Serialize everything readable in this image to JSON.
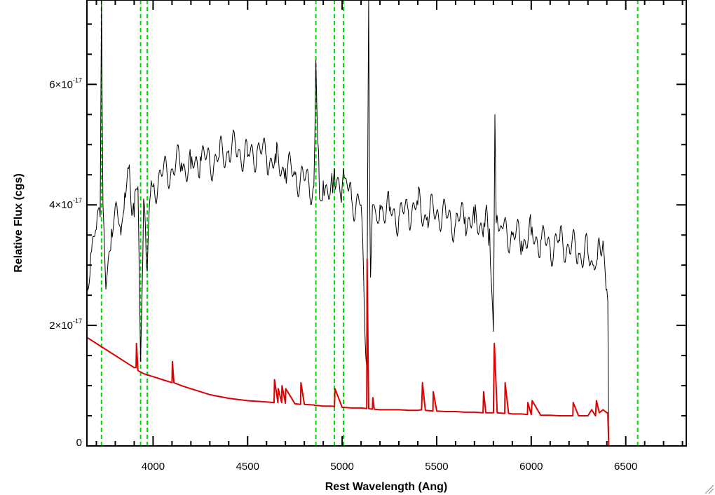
{
  "chart_data": {
    "type": "line",
    "title": "",
    "xlabel": "Rest Wavelength (Ang)",
    "ylabel": "Relative Flux (cgs)",
    "xlim": [
      3650,
      6820
    ],
    "ylim": [
      0,
      7.4e-17
    ],
    "x_ticks": [
      {
        "value": 4000,
        "label": "4000"
      },
      {
        "value": 4500,
        "label": "4500"
      },
      {
        "value": 5000,
        "label": "5000"
      },
      {
        "value": 5500,
        "label": "5500"
      },
      {
        "value": 6000,
        "label": "6000"
      },
      {
        "value": 6500,
        "label": "6500"
      }
    ],
    "y_ticks": [
      {
        "value": 0,
        "mant": "0",
        "exp": ""
      },
      {
        "value": 2e-17,
        "mant": "2×10",
        "exp": "-17"
      },
      {
        "value": 4e-17,
        "mant": "4×10",
        "exp": "-17"
      },
      {
        "value": 6e-17,
        "mant": "6×10",
        "exp": "-17"
      }
    ],
    "x_minor_step": 100,
    "y_minor_step": 5e-18,
    "grid": false,
    "reference_lines": {
      "color": "#00dd00",
      "style": "dashed",
      "x": [
        3727,
        3934,
        3969,
        4861,
        4959,
        5007,
        6563
      ]
    },
    "series": [
      {
        "color": "#000000",
        "x": [
          3650,
          3670,
          3700,
          3720,
          3727,
          3735,
          3750,
          3780,
          3800,
          3830,
          3850,
          3870,
          3900,
          3920,
          3934,
          3950,
          3969,
          3990,
          4000,
          4050,
          4100,
          4150,
          4200,
          4250,
          4300,
          4350,
          4400,
          4450,
          4500,
          4550,
          4600,
          4650,
          4700,
          4750,
          4800,
          4850,
          4861,
          4880,
          4900,
          4950,
          4959,
          5000,
          5007,
          5050,
          5100,
          5130,
          5140,
          5145,
          5150,
          5160,
          5200,
          5250,
          5300,
          5350,
          5400,
          5450,
          5500,
          5550,
          5600,
          5650,
          5700,
          5750,
          5780,
          5800,
          5808,
          5815,
          5850,
          5900,
          5950,
          6000,
          6050,
          6100,
          6150,
          6200,
          6250,
          6300,
          6330,
          6350,
          6380,
          6400,
          6405,
          6410,
          6820
        ],
        "y": [
          2.8e-17,
          3.2e-17,
          3.6e-17,
          3.8e-17,
          7.4e-17,
          4e-17,
          2.6e-17,
          3.6e-17,
          4e-17,
          3.5e-17,
          4.2e-17,
          4.6e-17,
          3.8e-17,
          4.3e-17,
          1.4e-17,
          4.1e-17,
          2.9e-17,
          4.4e-17,
          4.3e-17,
          4.5e-17,
          4.6e-17,
          4.7e-17,
          4.6e-17,
          4.8e-17,
          4.7e-17,
          4.8e-17,
          4.9e-17,
          4.9e-17,
          4.8e-17,
          4.9e-17,
          4.8e-17,
          4.7e-17,
          4.6e-17,
          4.5e-17,
          4.4e-17,
          4.3e-17,
          6.4e-17,
          4.1e-17,
          4.4e-17,
          4.2e-17,
          4.6e-17,
          4.3e-17,
          4.6e-17,
          4.1e-17,
          4e-17,
          1.3e-17,
          7.4e-17,
          4.3e-17,
          2.8e-17,
          4e-17,
          4e-17,
          3.9e-17,
          3.8e-17,
          3.9e-17,
          4e-17,
          3.8e-17,
          3.9e-17,
          3.8e-17,
          3.7e-17,
          3.8e-17,
          3.7e-17,
          3.7e-17,
          3.6e-17,
          1.9e-17,
          5.5e-17,
          3.7e-17,
          3.6e-17,
          3.5e-17,
          3.4e-17,
          3.5e-17,
          3.4e-17,
          3.3e-17,
          3.4e-17,
          3.3e-17,
          3.2e-17,
          3.2e-17,
          3e-17,
          3.1e-17,
          3.4e-17,
          2.6e-17,
          2.4e-17,
          0,
          0
        ]
      },
      {
        "color": "#dd0000",
        "x": [
          3650,
          3700,
          3750,
          3800,
          3850,
          3900,
          3910,
          3912,
          3920,
          3950,
          4000,
          4050,
          4100,
          4102,
          4110,
          4150,
          4200,
          4250,
          4300,
          4350,
          4400,
          4450,
          4500,
          4550,
          4600,
          4640,
          4642,
          4660,
          4662,
          4680,
          4682,
          4700,
          4702,
          4750,
          4780,
          4782,
          4800,
          4850,
          4861,
          4870,
          4900,
          4950,
          4959,
          4962,
          5000,
          5050,
          5100,
          5130,
          5132,
          5140,
          5160,
          5162,
          5170,
          5200,
          5250,
          5300,
          5350,
          5400,
          5420,
          5425,
          5440,
          5480,
          5482,
          5500,
          5550,
          5600,
          5650,
          5700,
          5745,
          5748,
          5760,
          5800,
          5805,
          5820,
          5860,
          5862,
          5880,
          5900,
          5950,
          5980,
          5982,
          6000,
          6005,
          6050,
          6100,
          6150,
          6200,
          6220,
          6222,
          6250,
          6300,
          6320,
          6340,
          6345,
          6360,
          6380,
          6400,
          6405,
          6410,
          6820
        ],
        "y": [
          1.8e-17,
          1.7e-17,
          1.6e-17,
          1.5e-17,
          1.4e-17,
          1.3e-17,
          1.3e-17,
          1.7e-17,
          1.25e-17,
          1.2e-17,
          1.15e-17,
          1.1e-17,
          1.05e-17,
          1.4e-17,
          1.05e-17,
          1e-17,
          9.5e-18,
          9e-18,
          8.5e-18,
          8.2e-18,
          7.9e-18,
          7.7e-18,
          7.5e-18,
          7.4e-18,
          7.3e-18,
          7.2e-18,
          1.1e-17,
          7.2e-18,
          9.5e-18,
          7.2e-18,
          1e-17,
          7.1e-18,
          9.5e-18,
          7e-18,
          6.9e-18,
          1.05e-17,
          6.9e-18,
          6.8e-18,
          6.7e-18,
          6.7e-18,
          6.6e-18,
          6.6e-18,
          6.5e-18,
          9.5e-18,
          6.4e-18,
          6.3e-18,
          6.3e-18,
          6.2e-18,
          3.1e-17,
          6.2e-18,
          6.1e-18,
          8e-18,
          6.1e-18,
          6e-18,
          6e-18,
          6e-18,
          5.9e-18,
          5.9e-18,
          6e-18,
          1.05e-17,
          5.9e-18,
          5.8e-18,
          9e-18,
          5.8e-18,
          5.7e-18,
          5.7e-18,
          5.6e-18,
          5.6e-18,
          5.5e-18,
          9e-18,
          5.5e-18,
          5.5e-18,
          1.7e-17,
          5.5e-18,
          5.4e-18,
          1.05e-17,
          5.4e-18,
          5.3e-18,
          5.3e-18,
          5.2e-18,
          7.2e-18,
          5.2e-18,
          7.5e-18,
          5.1e-18,
          5.1e-18,
          5e-18,
          5e-18,
          5e-18,
          7.2e-18,
          5e-18,
          5e-18,
          6e-18,
          5e-18,
          7.5e-18,
          5.5e-18,
          6e-18,
          5.5e-18,
          5.5e-18,
          0,
          0
        ]
      }
    ]
  }
}
